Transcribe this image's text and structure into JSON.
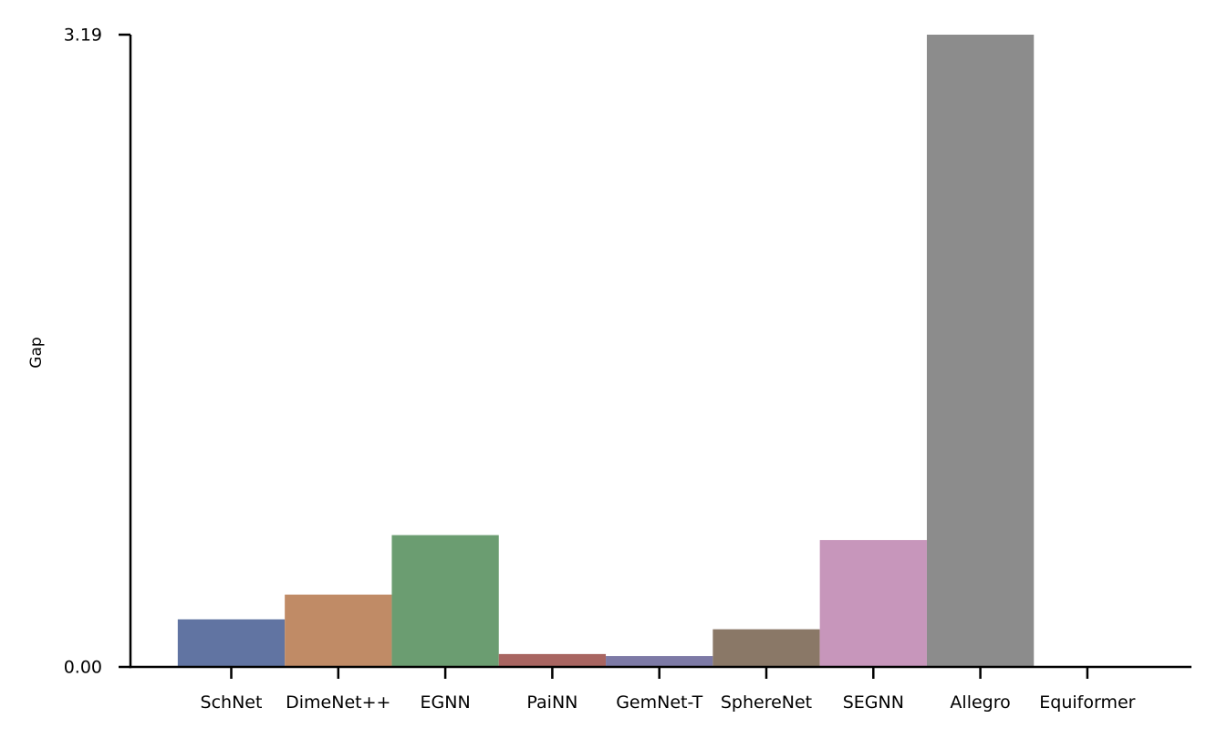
{
  "chart_data": {
    "type": "bar",
    "title": "",
    "xlabel": "",
    "ylabel": "Gap",
    "categories": [
      "SchNet",
      "DimeNet++",
      "EGNN",
      "PaiNN",
      "GemNet-T",
      "SphereNet",
      "SEGNN",
      "Allegro",
      "Equiformer"
    ],
    "values": [
      0.24,
      0.365,
      0.665,
      0.065,
      0.055,
      0.19,
      0.64,
      3.19,
      0.0
    ],
    "colors": [
      "#6174a2",
      "#c08b66",
      "#6b9d71",
      "#a86561",
      "#7d7aa6",
      "#8a7867",
      "#c796bb",
      "#8c8c8c",
      "#c9c37d"
    ],
    "ylim": [
      0,
      3.19
    ],
    "yticks": [
      "0.00",
      "3.19"
    ],
    "grid": false,
    "legend": "none"
  }
}
